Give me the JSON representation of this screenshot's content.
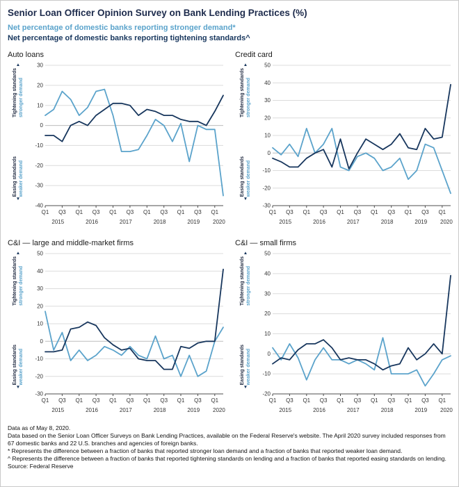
{
  "header": {
    "title": "Senior Loan Officer Opinion Survey on Bank Lending Practices (%)",
    "legend_demand": "Net percentage of domestic banks reporting stronger demand*",
    "legend_tightening": "Net percentage of domestic banks reporting tightening standards^"
  },
  "colors": {
    "demand": "#5BA3CB",
    "tightening": "#17365D",
    "grid": "#DCDCDC",
    "zero": "#BDBDBD",
    "axis": "#4D4D4D",
    "title": "#1D2B4C"
  },
  "axis_labels": {
    "up_arrow": "▲",
    "down_arrow": "▼",
    "top_dark": "Tightening standards",
    "top_blue": "stronger demand",
    "bottom_dark": "Easing standards",
    "bottom_blue": "weaker demand"
  },
  "chart_data": [
    {
      "type": "line",
      "title": "Auto loans",
      "ylim": [
        -40,
        30
      ],
      "ytick_step": 10,
      "categories": [
        "Q1 2015",
        "Q2 2015",
        "Q3 2015",
        "Q4 2015",
        "Q1 2016",
        "Q2 2016",
        "Q3 2016",
        "Q4 2016",
        "Q1 2017",
        "Q2 2017",
        "Q3 2017",
        "Q4 2017",
        "Q1 2018",
        "Q2 2018",
        "Q3 2018",
        "Q4 2018",
        "Q1 2019",
        "Q2 2019",
        "Q3 2019",
        "Q4 2019",
        "Q1 2020",
        "Q2 2020"
      ],
      "series": [
        {
          "name": "Stronger demand",
          "color_key": "demand",
          "values": [
            5,
            8,
            17,
            13,
            5,
            9,
            17,
            18,
            5,
            -13,
            -13,
            -12,
            -5,
            3,
            0,
            -8,
            1,
            -18,
            0,
            -2,
            -2,
            -35
          ]
        },
        {
          "name": "Tightening standards",
          "color_key": "tightening",
          "values": [
            -5,
            -5,
            -8,
            0,
            2,
            0,
            5,
            8,
            11,
            11,
            10,
            5,
            8,
            7,
            5,
            5,
            3,
            2,
            2,
            0,
            7,
            15
          ]
        }
      ]
    },
    {
      "type": "line",
      "title": "Credit card",
      "ylim": [
        -30,
        50
      ],
      "ytick_step": 10,
      "categories": [
        "Q1 2015",
        "Q2 2015",
        "Q3 2015",
        "Q4 2015",
        "Q1 2016",
        "Q2 2016",
        "Q3 2016",
        "Q4 2016",
        "Q1 2017",
        "Q2 2017",
        "Q3 2017",
        "Q4 2017",
        "Q1 2018",
        "Q2 2018",
        "Q3 2018",
        "Q4 2018",
        "Q1 2019",
        "Q2 2019",
        "Q3 2019",
        "Q4 2019",
        "Q1 2020",
        "Q2 2020"
      ],
      "series": [
        {
          "name": "Stronger demand",
          "color_key": "demand",
          "values": [
            3,
            -1,
            5,
            -2,
            14,
            0,
            5,
            14,
            -8,
            -10,
            -2,
            0,
            -3,
            -10,
            -8,
            -3,
            -15,
            -10,
            5,
            3,
            -10,
            -23
          ]
        },
        {
          "name": "Tightening standards",
          "color_key": "tightening",
          "values": [
            -3,
            -5,
            -8,
            -8,
            -3,
            0,
            2,
            -8,
            8,
            -9,
            0,
            8,
            5,
            2,
            5,
            11,
            3,
            2,
            14,
            8,
            9,
            39
          ]
        }
      ]
    },
    {
      "type": "line",
      "title": "C&I — large and middle-market firms",
      "ylim": [
        -30,
        50
      ],
      "ytick_step": 10,
      "categories": [
        "Q1 2015",
        "Q2 2015",
        "Q3 2015",
        "Q4 2015",
        "Q1 2016",
        "Q2 2016",
        "Q3 2016",
        "Q4 2016",
        "Q1 2017",
        "Q2 2017",
        "Q3 2017",
        "Q4 2017",
        "Q1 2018",
        "Q2 2018",
        "Q3 2018",
        "Q4 2018",
        "Q1 2019",
        "Q2 2019",
        "Q3 2019",
        "Q4 2019",
        "Q1 2020",
        "Q2 2020"
      ],
      "series": [
        {
          "name": "Stronger demand",
          "color_key": "demand",
          "values": [
            17,
            -5,
            5,
            -11,
            -5,
            -11,
            -8,
            -3,
            -5,
            -8,
            -3,
            -8,
            -10,
            3,
            -10,
            -8,
            -20,
            -8,
            -20,
            -17,
            0,
            8
          ]
        },
        {
          "name": "Tightening standards",
          "color_key": "tightening",
          "values": [
            -6,
            -6,
            -5,
            7,
            8,
            11,
            9,
            2,
            -2,
            -5,
            -4,
            -10,
            -11,
            -11,
            -16,
            -16,
            -3,
            -4,
            -1,
            0,
            0,
            41
          ]
        }
      ]
    },
    {
      "type": "line",
      "title": "C&I — small firms",
      "ylim": [
        -20,
        50
      ],
      "ytick_step": 10,
      "categories": [
        "Q1 2015",
        "Q2 2015",
        "Q3 2015",
        "Q4 2015",
        "Q1 2016",
        "Q2 2016",
        "Q3 2016",
        "Q4 2016",
        "Q1 2017",
        "Q2 2017",
        "Q3 2017",
        "Q4 2017",
        "Q1 2018",
        "Q2 2018",
        "Q3 2018",
        "Q4 2018",
        "Q1 2019",
        "Q2 2019",
        "Q3 2019",
        "Q4 2019",
        "Q1 2020",
        "Q2 2020"
      ],
      "series": [
        {
          "name": "Stronger demand",
          "color_key": "demand",
          "values": [
            3,
            -3,
            5,
            -2,
            -13,
            -3,
            3,
            -3,
            -3,
            -5,
            -3,
            -5,
            -8,
            8,
            -10,
            -10,
            -10,
            -8,
            -16,
            -10,
            -3,
            -1
          ]
        },
        {
          "name": "Tightening standards",
          "color_key": "tightening",
          "values": [
            -5,
            -2,
            -3,
            2,
            5,
            5,
            7,
            3,
            -3,
            -2,
            -3,
            -3,
            -5,
            -8,
            -6,
            -5,
            3,
            -3,
            0,
            5,
            0,
            39
          ]
        }
      ]
    }
  ],
  "footer": {
    "lines": [
      "Data as of May 8, 2020.",
      "Data based on the Senior Loan Officer Surveys on Bank Lending Practices, available on the Federal Reserve's website. The April 2020 survey included responses from 67 domestic banks and 22 U.S. branches and agencies of foreign banks.",
      "* Represents the difference between a fraction of banks that reported stronger loan demand and a fraction of banks that reported weaker loan demand.",
      "^ Represents the difference between a fraction of banks that reported tightening standards on lending and a fraction of banks that reported easing standards on lending.",
      "Source: Federal Reserve"
    ]
  }
}
